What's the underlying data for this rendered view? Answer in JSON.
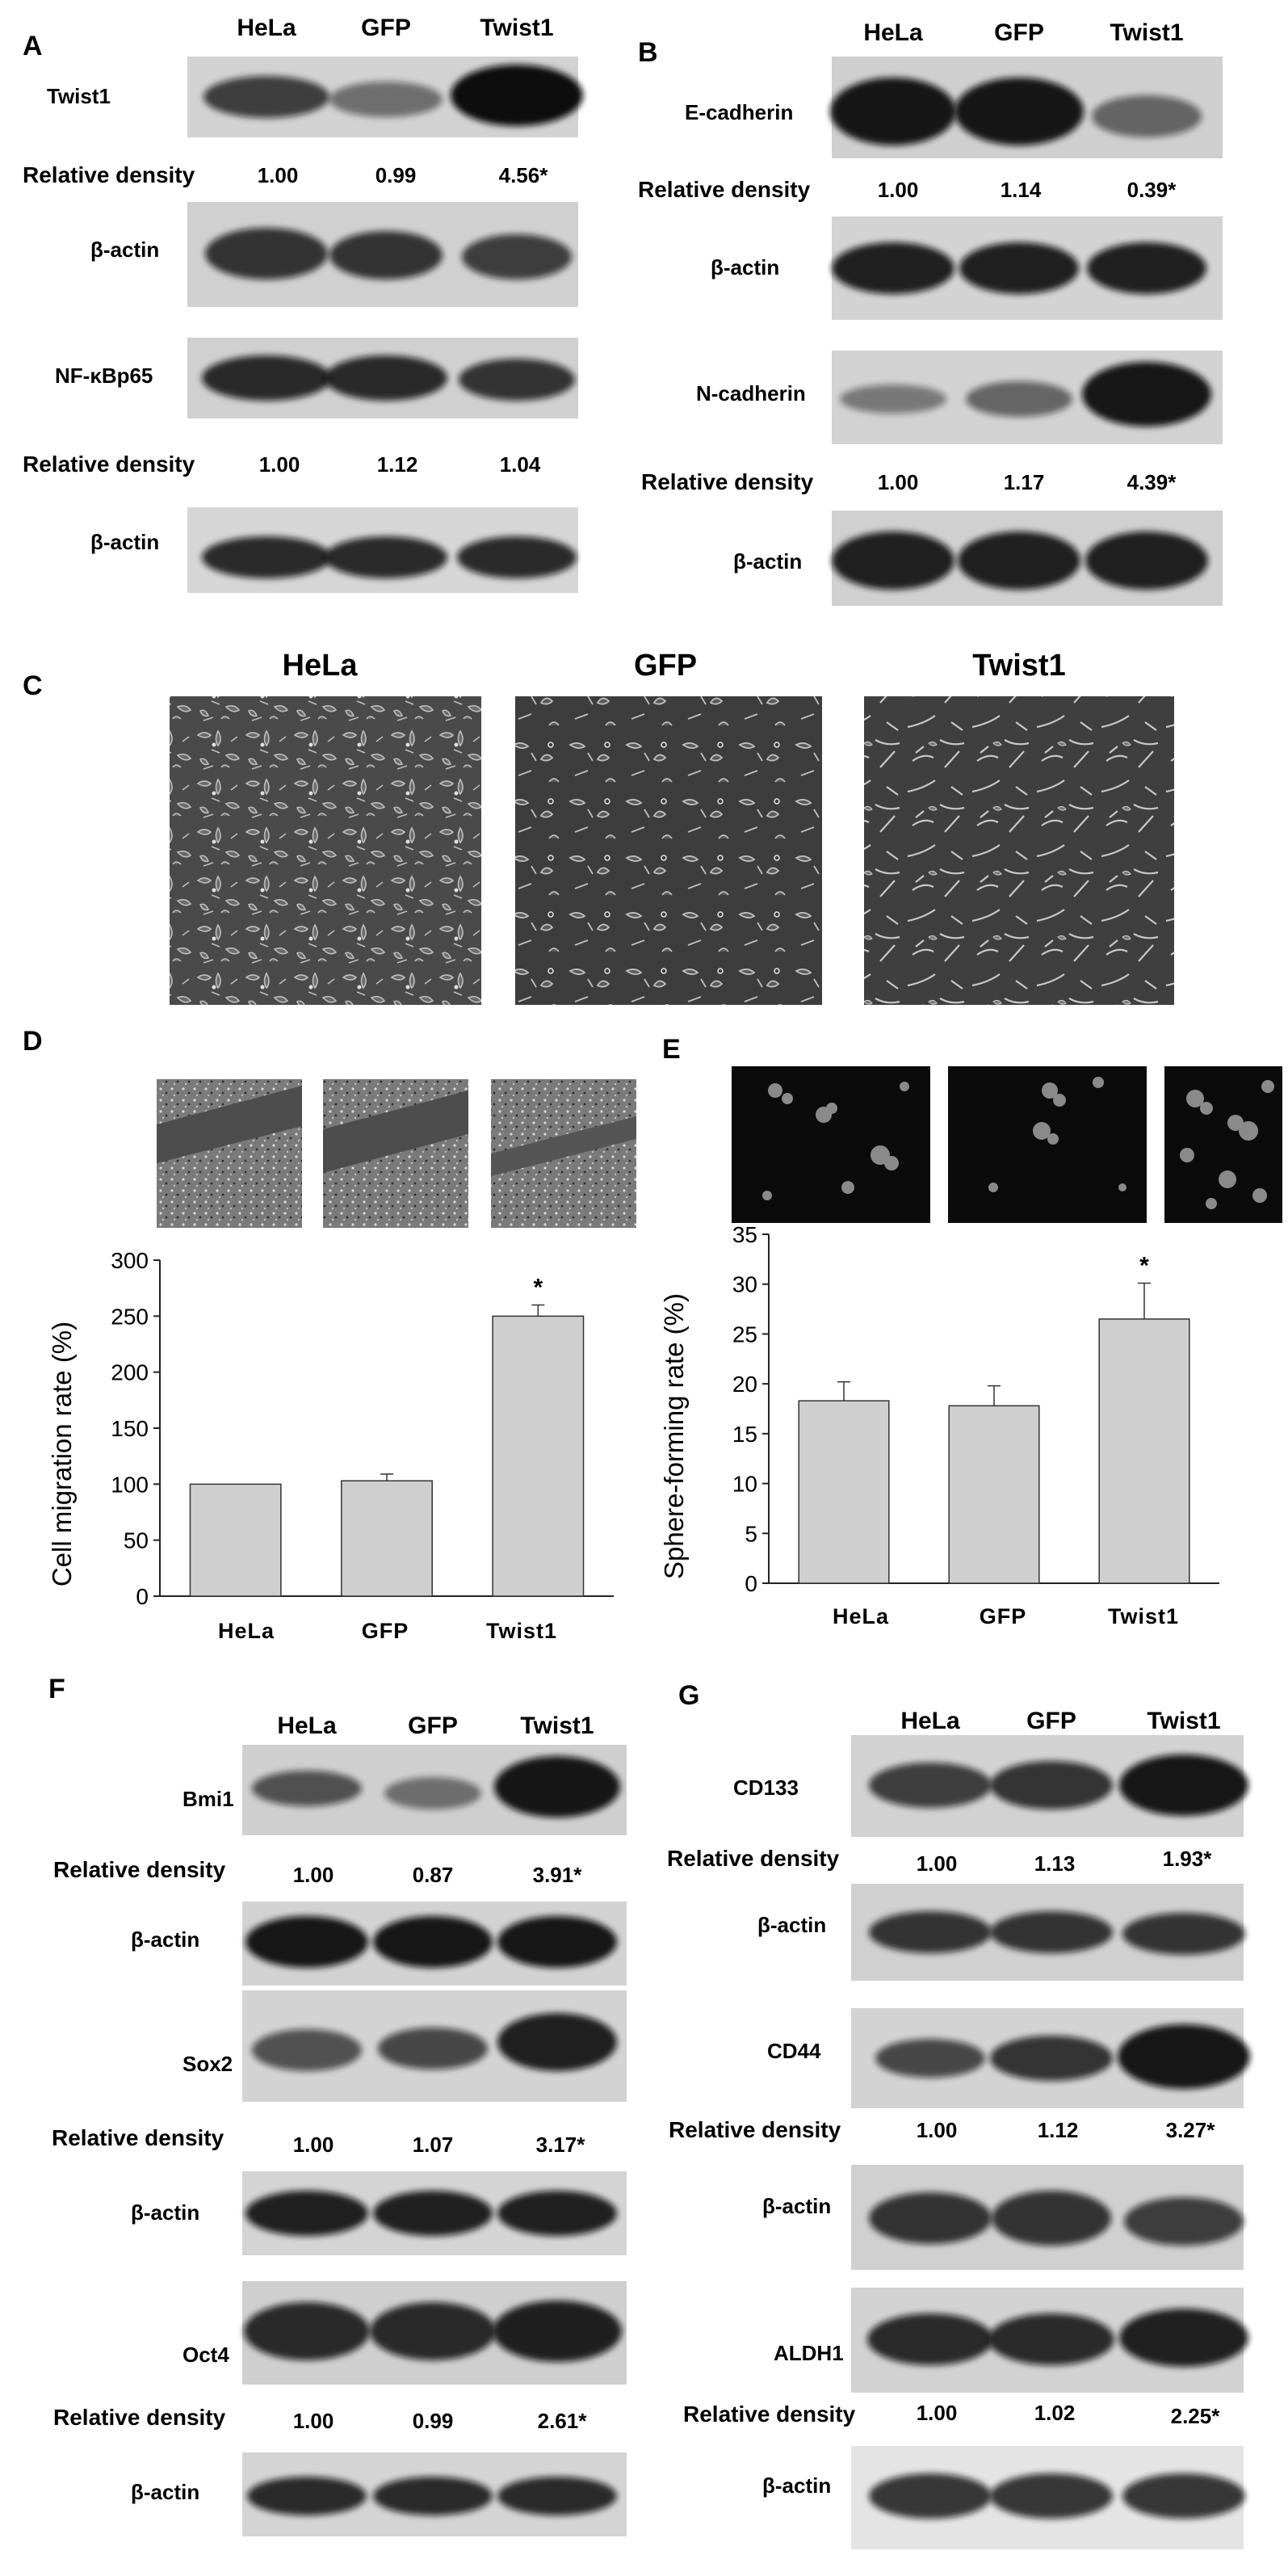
{
  "panels": {
    "A": {
      "letter": "A",
      "columns": [
        "HeLa",
        "GFP",
        "Twist1"
      ],
      "blots": [
        {
          "label": "Twist1",
          "intensity": [
            0.75,
            0.5,
            1.0
          ],
          "density_label": "Relative density",
          "densities": [
            "1.00",
            "0.99",
            "4.56*"
          ]
        },
        {
          "label": "β-actin",
          "intensity": [
            0.8,
            0.8,
            0.75
          ]
        },
        {
          "label": "NF-κBp65",
          "intensity": [
            0.85,
            0.85,
            0.8
          ],
          "density_label": "Relative density",
          "densities": [
            "1.00",
            "1.12",
            "1.04"
          ]
        },
        {
          "label": "β-actin",
          "intensity": [
            0.85,
            0.85,
            0.85
          ]
        }
      ]
    },
    "B": {
      "letter": "B",
      "columns": [
        "HeLa",
        "GFP",
        "Twist1"
      ],
      "blots": [
        {
          "label": "E-cadherin",
          "intensity": [
            0.95,
            0.95,
            0.55
          ],
          "density_label": "Relative density",
          "densities": [
            "1.00",
            "1.14",
            "0.39*"
          ]
        },
        {
          "label": "β-actin",
          "intensity": [
            0.9,
            0.9,
            0.9
          ]
        },
        {
          "label": "N-cadherin",
          "intensity": [
            0.45,
            0.55,
            0.95
          ],
          "density_label": "Relative density",
          "densities": [
            "1.00",
            "1.17",
            "4.39*"
          ]
        },
        {
          "label": "β-actin",
          "intensity": [
            0.9,
            0.9,
            0.9
          ]
        }
      ]
    },
    "C": {
      "letter": "C",
      "columns": [
        "HeLa",
        "GFP",
        "Twist1"
      ]
    },
    "D": {
      "letter": "D",
      "chart_data": {
        "type": "bar",
        "categories": [
          "HeLa",
          "GFP",
          "Twist1"
        ],
        "values": [
          100,
          103,
          250
        ],
        "errors": [
          0,
          6,
          10
        ],
        "significance": [
          "",
          "",
          "*"
        ],
        "ylabel": "Cell migration rate (%)",
        "ylim": [
          0,
          300
        ],
        "yticks": [
          0,
          50,
          100,
          150,
          200,
          250,
          300
        ],
        "grid": false
      }
    },
    "E": {
      "letter": "E",
      "chart_data": {
        "type": "bar",
        "categories": [
          "HeLa",
          "GFP",
          "Twist1"
        ],
        "values": [
          18.3,
          17.8,
          26.5
        ],
        "errors": [
          1.9,
          2.0,
          3.6
        ],
        "significance": [
          "",
          "",
          "*"
        ],
        "ylabel": "Sphere-forming rate (%)",
        "ylim": [
          0,
          35
        ],
        "yticks": [
          0,
          5,
          10,
          15,
          20,
          25,
          30,
          35
        ],
        "grid": false
      }
    },
    "F": {
      "letter": "F",
      "columns": [
        "HeLa",
        "GFP",
        "Twist1"
      ],
      "blots": [
        {
          "label": "Bmi1",
          "intensity": [
            0.65,
            0.5,
            0.95
          ],
          "density_label": "Relative density",
          "densities": [
            "1.00",
            "0.87",
            "3.91*"
          ]
        },
        {
          "label": "β-actin",
          "intensity": [
            0.95,
            0.95,
            0.95
          ]
        },
        {
          "label": "Sox2",
          "intensity": [
            0.65,
            0.7,
            0.9
          ],
          "density_label": "Relative density",
          "densities": [
            "1.00",
            "1.07",
            "3.17*"
          ]
        },
        {
          "label": "β-actin",
          "intensity": [
            0.9,
            0.9,
            0.9
          ]
        },
        {
          "label": "Oct4",
          "intensity": [
            0.85,
            0.85,
            0.9
          ],
          "density_label": "Relative density",
          "densities": [
            "1.00",
            "0.99",
            "2.61*"
          ]
        },
        {
          "label": "β-actin",
          "intensity": [
            0.85,
            0.85,
            0.85
          ]
        }
      ]
    },
    "G": {
      "letter": "G",
      "columns": [
        "HeLa",
        "GFP",
        "Twist1"
      ],
      "blots": [
        {
          "label": "CD133",
          "intensity": [
            0.75,
            0.8,
            0.95
          ],
          "density_label": "Relative density",
          "densities": [
            "1.00",
            "1.13",
            "1.93*"
          ]
        },
        {
          "label": "β-actin",
          "intensity": [
            0.8,
            0.8,
            0.8
          ]
        },
        {
          "label": "CD44",
          "intensity": [
            0.7,
            0.8,
            0.95
          ],
          "density_label": "Relative density",
          "densities": [
            "1.00",
            "1.12",
            "3.27*"
          ]
        },
        {
          "label": "β-actin",
          "intensity": [
            0.8,
            0.8,
            0.75
          ]
        },
        {
          "label": "ALDH1",
          "intensity": [
            0.85,
            0.85,
            0.9
          ],
          "density_label": "Relative density",
          "densities": [
            "1.00",
            "1.02",
            "2.25*"
          ]
        },
        {
          "label": "β-actin",
          "intensity": [
            0.8,
            0.8,
            0.8
          ]
        }
      ]
    }
  }
}
